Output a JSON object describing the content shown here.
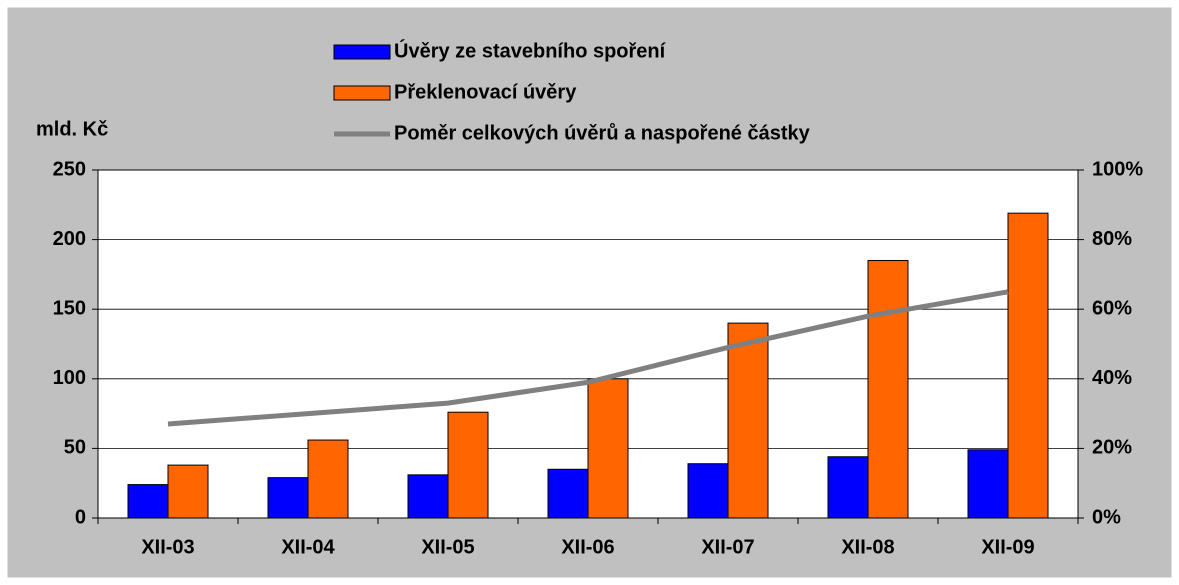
{
  "chart_data": {
    "type": "bar_line",
    "y_label": "mld. Kč",
    "categories": [
      "XII-03",
      "XII-04",
      "XII-05",
      "XII-06",
      "XII-07",
      "XII-08",
      "XII-09"
    ],
    "series": [
      {
        "name": "Úvěry ze stavebního spoření",
        "type": "bar",
        "color": "#0000ff",
        "values": [
          24,
          29,
          31,
          35,
          39,
          44,
          49
        ]
      },
      {
        "name": "Překlenovací úvěry",
        "type": "bar",
        "color": "#ff6600",
        "values": [
          38,
          56,
          76,
          100,
          140,
          185,
          219
        ]
      },
      {
        "name": "Poměr celkových úvěrů a naspořené částky",
        "type": "line",
        "axis": "y2",
        "color": "#808080",
        "values": [
          27,
          30,
          33,
          39,
          49,
          58,
          65
        ]
      }
    ],
    "ylim": [
      0,
      250
    ],
    "yticks": [
      0,
      50,
      100,
      150,
      200,
      250
    ],
    "y2lim": [
      0,
      100
    ],
    "y2ticks": [
      {
        "value": 0,
        "label": "0%"
      },
      {
        "value": 20,
        "label": "20%"
      },
      {
        "value": 40,
        "label": "40%"
      },
      {
        "value": 60,
        "label": "60%"
      },
      {
        "value": 80,
        "label": "80%"
      },
      {
        "value": 100,
        "label": "100%"
      }
    ],
    "grid": true
  }
}
